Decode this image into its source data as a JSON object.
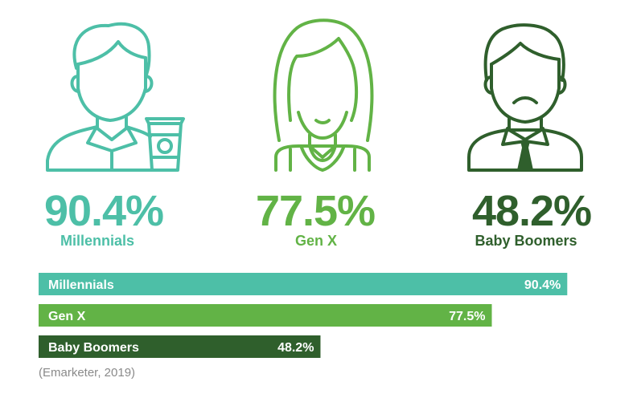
{
  "colors": {
    "millennials": "#4dbfa7",
    "genx": "#62b346",
    "boomers": "#2f5f2c"
  },
  "figures": [
    {
      "icon": "millennial-man-with-coffee-icon",
      "value": "90.4%",
      "label": "Millennials"
    },
    {
      "icon": "gen-x-woman-icon",
      "value": "77.5%",
      "label": "Gen X"
    },
    {
      "icon": "baby-boomer-man-with-tie-icon",
      "value": "48.2%",
      "label": "Baby Boomers"
    }
  ],
  "chart_data": {
    "type": "bar",
    "orientation": "horizontal",
    "categories": [
      "Millennials",
      "Gen X",
      "Baby Boomers"
    ],
    "values": [
      90.4,
      77.5,
      48.2
    ],
    "value_labels": [
      "90.4%",
      "77.5%",
      "48.2%"
    ],
    "colors": [
      "#4dbfa7",
      "#62b346",
      "#2f5f2c"
    ],
    "xlim": [
      0,
      100
    ],
    "grid": false
  },
  "source": "(Emarketer, 2019)"
}
